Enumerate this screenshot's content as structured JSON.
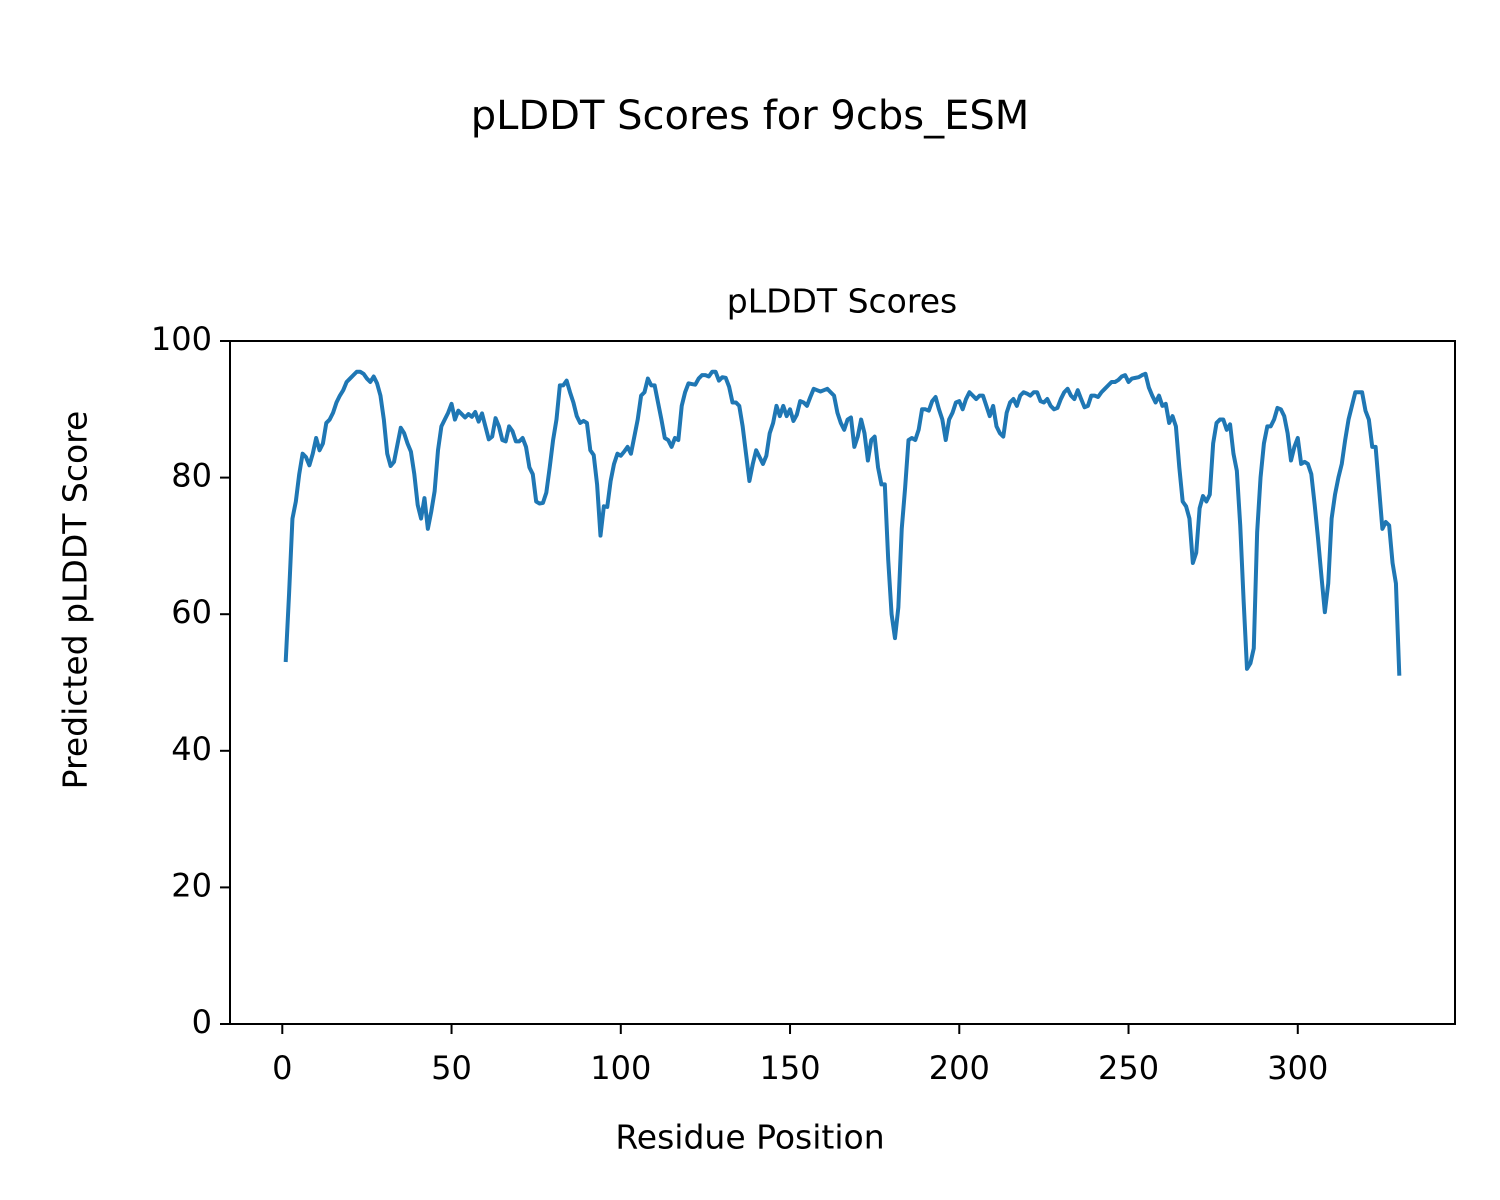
{
  "chart_data": {
    "type": "line",
    "suptitle": "pLDDT Scores for 9cbs_ESM",
    "title": "pLDDT Scores",
    "xlabel": "Residue Position",
    "ylabel": "Predicted pLDDT Score",
    "xlim": [
      -15.45,
      346.45
    ],
    "xticks": [
      0,
      50,
      100,
      150,
      200,
      250,
      300
    ],
    "ylim": [
      0,
      100
    ],
    "yticks": [
      0,
      20,
      40,
      60,
      80,
      100
    ],
    "grid": false,
    "x": [
      1,
      2,
      3,
      4,
      5,
      6,
      7,
      8,
      9,
      10,
      11,
      12,
      13,
      14,
      15,
      16,
      17,
      18,
      19,
      20,
      21,
      22,
      23,
      24,
      25,
      26,
      27,
      28,
      29,
      30,
      31,
      32,
      33,
      34,
      35,
      36,
      37,
      38,
      39,
      40,
      41,
      42,
      43,
      44,
      45,
      46,
      47,
      48,
      49,
      50,
      51,
      52,
      53,
      54,
      55,
      56,
      57,
      58,
      59,
      60,
      61,
      62,
      63,
      64,
      65,
      66,
      67,
      68,
      69,
      70,
      71,
      72,
      73,
      74,
      75,
      76,
      77,
      78,
      79,
      80,
      81,
      82,
      83,
      84,
      85,
      86,
      87,
      88,
      89,
      90,
      91,
      92,
      93,
      94,
      95,
      96,
      97,
      98,
      99,
      100,
      101,
      102,
      103,
      104,
      105,
      106,
      107,
      108,
      109,
      110,
      111,
      112,
      113,
      114,
      115,
      116,
      117,
      118,
      119,
      120,
      121,
      122,
      123,
      124,
      125,
      126,
      127,
      128,
      129,
      130,
      131,
      132,
      133,
      134,
      135,
      136,
      137,
      138,
      139,
      140,
      141,
      142,
      143,
      144,
      145,
      146,
      147,
      148,
      149,
      150,
      151,
      152,
      153,
      154,
      155,
      156,
      157,
      158,
      159,
      160,
      161,
      162,
      163,
      164,
      165,
      166,
      167,
      168,
      169,
      170,
      171,
      172,
      173,
      174,
      175,
      176,
      177,
      178,
      179,
      180,
      181,
      182,
      183,
      184,
      185,
      186,
      187,
      188,
      189,
      190,
      191,
      192,
      193,
      194,
      195,
      196,
      197,
      198,
      199,
      200,
      201,
      202,
      203,
      204,
      205,
      206,
      207,
      208,
      209,
      210,
      211,
      212,
      213,
      214,
      215,
      216,
      217,
      218,
      219,
      220,
      221,
      222,
      223,
      224,
      225,
      226,
      227,
      228,
      229,
      230,
      231,
      232,
      233,
      234,
      235,
      236,
      237,
      238,
      239,
      240,
      241,
      242,
      243,
      244,
      245,
      246,
      247,
      248,
      249,
      250,
      251,
      252,
      253,
      254,
      255,
      256,
      257,
      258,
      259,
      260,
      261,
      262,
      263,
      264,
      265,
      266,
      267,
      268,
      269,
      270,
      271,
      272,
      273,
      274,
      275,
      276,
      277,
      278,
      279,
      280,
      281,
      282,
      283,
      284,
      285,
      286,
      287,
      288,
      289,
      290,
      291,
      292,
      293,
      294,
      295,
      296,
      297,
      298,
      299,
      300,
      301,
      302,
      303,
      304,
      305,
      306,
      307,
      308,
      309,
      310,
      311,
      312,
      313,
      314,
      315,
      316,
      317,
      318,
      319,
      320,
      321,
      322,
      323,
      324,
      325,
      326,
      327,
      328,
      329,
      330
    ],
    "series": [
      {
        "name": "pLDDT",
        "color": "#1f77b4",
        "values": [
          53,
          63,
          74,
          76.5,
          80.5,
          83.5,
          83,
          81.8,
          83.5,
          85.8,
          84,
          85,
          88,
          88.5,
          89.5,
          91,
          92,
          92.8,
          94,
          94.5,
          95,
          95.5,
          95.5,
          95.2,
          94.5,
          94,
          94.8,
          93.8,
          92,
          88.5,
          83.5,
          81.7,
          82.3,
          84.8,
          87.3,
          86.5,
          85,
          83.8,
          80.5,
          76,
          74,
          77,
          72.5,
          75,
          78,
          84,
          87.5,
          88.5,
          89.5,
          90.8,
          88.5,
          89.8,
          89.3,
          88.8,
          89.3,
          88.9,
          89.6,
          88.2,
          89.4,
          87.5,
          85.6,
          86,
          88.7,
          87.5,
          85.5,
          85.3,
          87.5,
          86.8,
          85.3,
          85.3,
          85.8,
          84.5,
          81.5,
          80.5,
          76.5,
          76.2,
          76.3,
          77.8,
          81.5,
          85.5,
          88.5,
          93.5,
          93.5,
          94.2,
          92.5,
          91,
          89,
          88,
          88.3,
          88,
          84,
          83.3,
          79,
          71.5,
          75.8,
          75.7,
          79.5,
          82,
          83.5,
          83.2,
          83.8,
          84.5,
          83.5,
          86,
          88.5,
          92,
          92.5,
          94.5,
          93.5,
          93.5,
          91,
          88.5,
          85.8,
          85.5,
          84.5,
          85.8,
          85.5,
          90.5,
          92.5,
          93.8,
          93.7,
          93.6,
          94.5,
          95,
          95,
          94.8,
          95.5,
          95.5,
          94.2,
          94.7,
          94.6,
          93.3,
          91,
          91,
          90.5,
          87.5,
          83.5,
          79.5,
          82,
          84,
          83,
          82,
          83.2,
          86.5,
          88,
          90.5,
          89,
          90.5,
          89,
          90,
          88.3,
          89.2,
          91.2,
          91,
          90.5,
          91.8,
          93,
          92.8,
          92.6,
          92.8,
          93,
          92.5,
          92,
          89.5,
          88,
          87,
          88.5,
          88.8,
          84.5,
          86,
          88.5,
          86.5,
          82.5,
          85.5,
          86,
          81.5,
          79,
          79,
          68,
          60,
          56.5,
          61,
          72.5,
          78.5,
          85.5,
          85.8,
          85.5,
          87,
          90,
          90,
          89.8,
          91.2,
          91.8,
          90,
          88.5,
          85.5,
          88.5,
          89.5,
          91,
          91.2,
          90,
          91.5,
          92.5,
          92,
          91.5,
          92,
          92,
          90.5,
          89,
          90.5,
          87.5,
          86.5,
          86,
          89.5,
          91,
          91.5,
          90.5,
          92,
          92.5,
          92.3,
          92,
          92.5,
          92.5,
          91.2,
          91,
          91.5,
          90.5,
          90,
          90.2,
          91.5,
          92.5,
          93,
          92,
          91.5,
          92.8,
          91.5,
          90.3,
          90.5,
          92,
          92,
          91.8,
          92.5,
          93,
          93.5,
          94,
          94,
          94.3,
          94.8,
          95,
          94,
          94.5,
          94.6,
          94.7,
          95,
          95.2,
          93.2,
          92,
          91,
          92,
          90.5,
          90.8,
          88,
          89,
          87.5,
          81.5,
          76.5,
          75.8,
          74,
          67.5,
          69,
          75.5,
          77.3,
          76.5,
          77.5,
          85,
          88,
          88.5,
          88.5,
          87,
          87.8,
          83.5,
          81,
          73,
          62,
          52,
          52.8,
          55,
          72,
          80,
          85,
          87.5,
          87.5,
          88.5,
          90.2,
          90,
          89,
          86.5,
          82.5,
          84.5,
          85.8,
          82,
          82.3,
          82,
          80.5,
          76,
          71,
          65.5,
          60.3,
          64.5,
          74,
          77.5,
          80,
          82,
          85.5,
          88.5,
          90.5,
          92.5,
          92.5,
          92.5,
          89.8,
          88.5,
          84.5,
          84.5,
          78.5,
          72.5,
          73.5,
          73,
          67.5,
          64.5,
          51
        ]
      }
    ]
  }
}
